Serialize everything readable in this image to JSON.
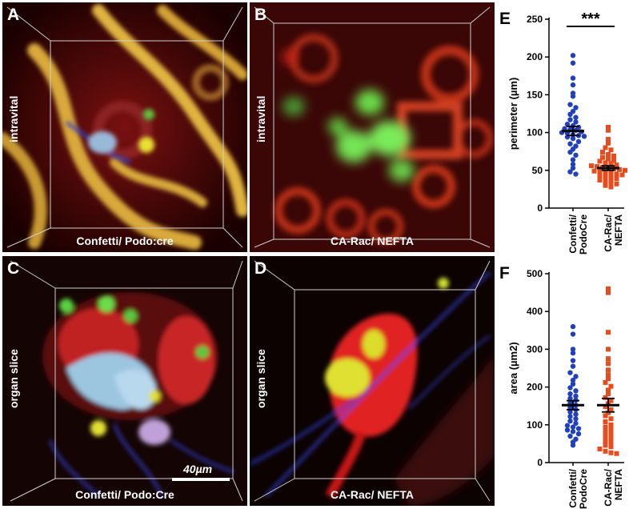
{
  "panels": {
    "A": {
      "letter": "A",
      "side_label": "intravital",
      "caption": "Confetti/ Podo:cre"
    },
    "B": {
      "letter": "B",
      "side_label": "intravital",
      "caption": "CA-Rac/ NEFTA"
    },
    "C": {
      "letter": "C",
      "side_label": "organ slice",
      "caption": "Confetti/ Podo:Cre",
      "scale_bar": "40µm"
    },
    "D": {
      "letter": "D",
      "side_label": "organ slice",
      "caption": "CA-Rac/ NEFTA"
    }
  },
  "colors": {
    "series1": "#2040c0",
    "series2": "#e84c1c",
    "axis": "#000000"
  },
  "chart_data": [
    {
      "type": "scatter",
      "letter": "E",
      "title": "",
      "ylabel": "perimeter (µm)",
      "ylim": [
        0,
        250
      ],
      "yticks": [
        0,
        50,
        100,
        150,
        200,
        250
      ],
      "categories": [
        "Confetti/ PodoCre",
        "CA-Rac/ NEFTA"
      ],
      "significance": "***",
      "series": [
        {
          "category": "Confetti/ PodoCre",
          "color": "#2040c0",
          "marker": "circle",
          "mean": 102,
          "sem": 6,
          "values": [
            202,
            192,
            172,
            163,
            152,
            148,
            137,
            133,
            128,
            124,
            120,
            117,
            114,
            111,
            109,
            107,
            105,
            104,
            103,
            101,
            100,
            99,
            97,
            96,
            95,
            94,
            92,
            88,
            85,
            82,
            78,
            74,
            70,
            64,
            58,
            53,
            48,
            45
          ]
        },
        {
          "category": "CA-Rac/ NEFTA",
          "color": "#e84c1c",
          "marker": "square",
          "mean": 53,
          "sem": 3,
          "values": [
            107,
            103,
            91,
            86,
            80,
            77,
            74,
            71,
            69,
            67,
            65,
            63,
            62,
            60,
            59,
            57,
            56,
            55,
            54,
            53,
            52,
            51,
            50,
            49,
            48,
            47,
            46,
            45,
            44,
            43,
            41,
            40,
            39,
            37,
            36,
            34,
            32,
            30,
            28
          ]
        }
      ]
    },
    {
      "type": "scatter",
      "letter": "F",
      "title": "",
      "ylabel": "area (µm2)",
      "ylim": [
        0,
        500
      ],
      "yticks": [
        0,
        100,
        200,
        300,
        400,
        500
      ],
      "categories": [
        "Confetti/ PodoCre",
        "CA-Rac/ NEFTA"
      ],
      "series": [
        {
          "category": "Confetti/ PodoCre",
          "color": "#2040c0",
          "marker": "circle",
          "mean": 152,
          "sem": 12,
          "values": [
            360,
            340,
            300,
            290,
            270,
            255,
            238,
            228,
            218,
            208,
            198,
            190,
            182,
            176,
            170,
            165,
            158,
            152,
            146,
            140,
            134,
            128,
            122,
            116,
            110,
            104,
            98,
            94,
            90,
            86,
            82,
            76,
            70,
            62,
            54,
            46
          ]
        },
        {
          "category": "CA-Rac/ NEFTA",
          "color": "#e84c1c",
          "marker": "square",
          "mean": 152,
          "sem": 18,
          "values": [
            460,
            450,
            345,
            300,
            275,
            262,
            245,
            232,
            222,
            212,
            202,
            192,
            182,
            172,
            164,
            156,
            148,
            140,
            132,
            124,
            116,
            108,
            100,
            94,
            88,
            82,
            76,
            70,
            64,
            58,
            52,
            46,
            42,
            36,
            30,
            26,
            24
          ]
        }
      ]
    }
  ]
}
